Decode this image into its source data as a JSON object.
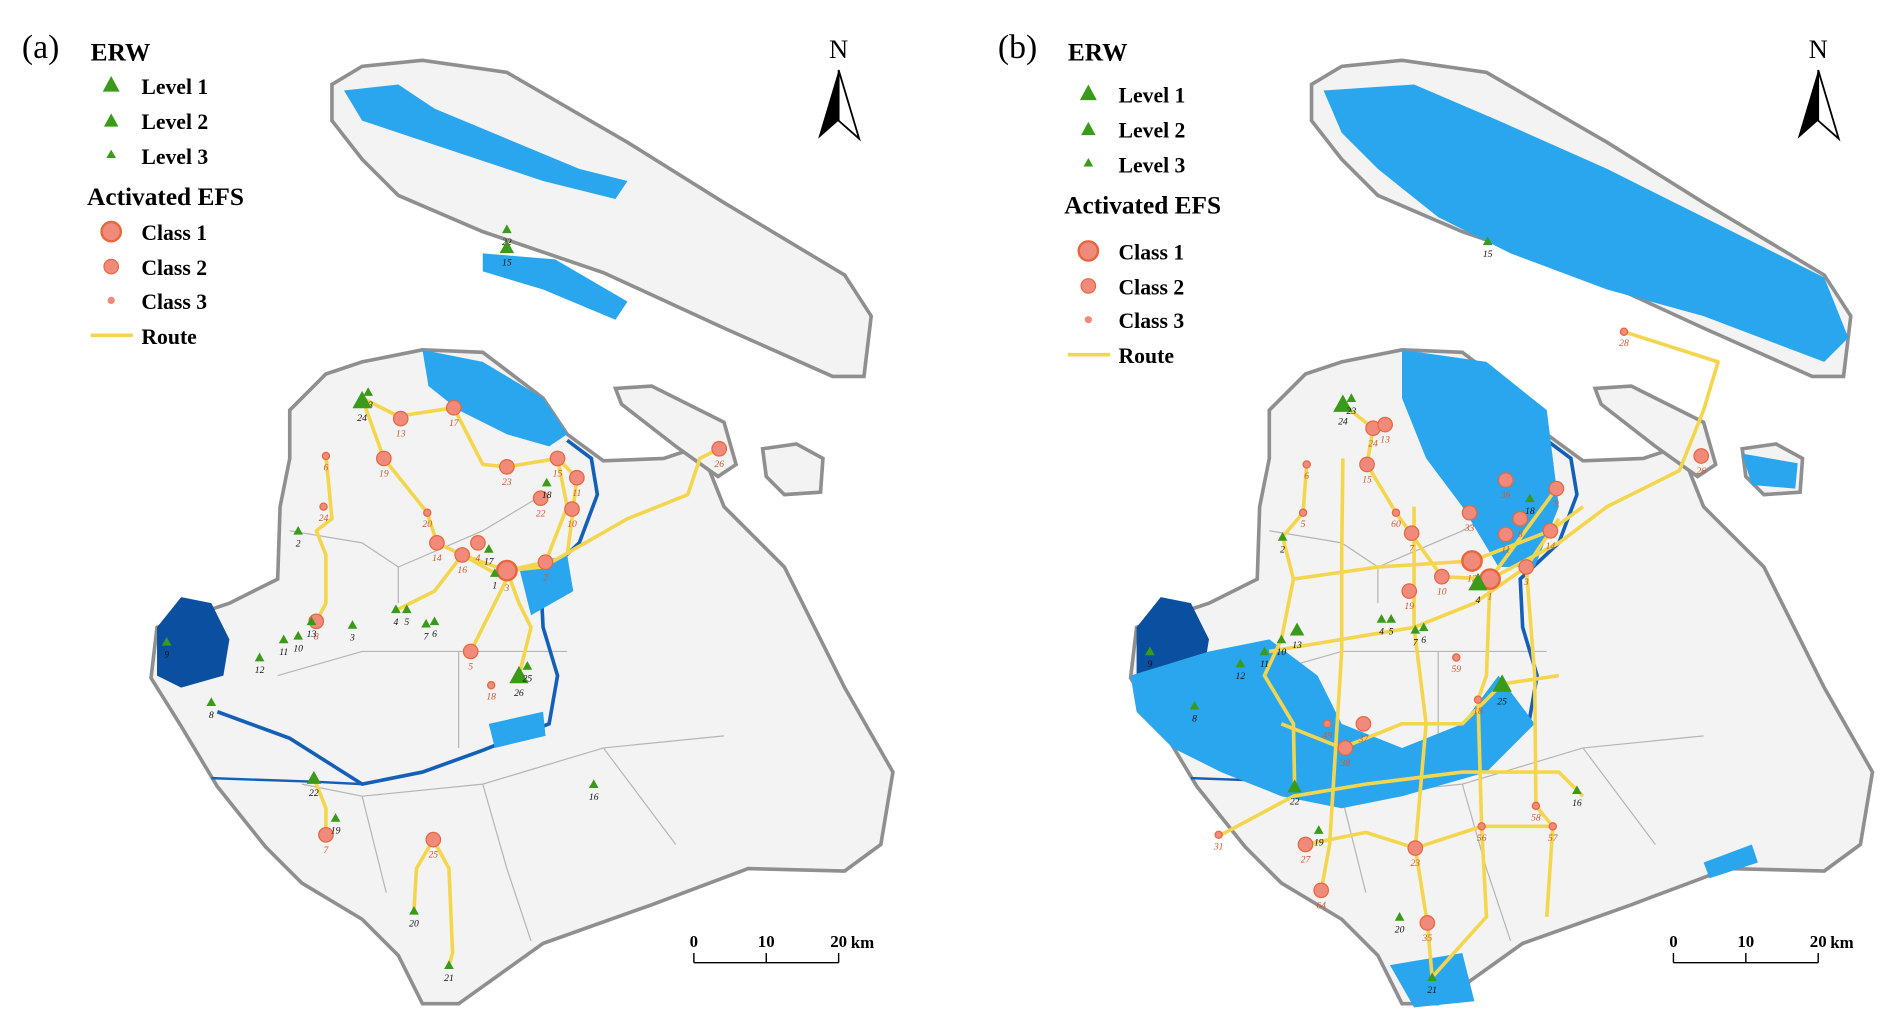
{
  "panels": [
    {
      "label": "(a)",
      "erw": [
        {
          "label": "22",
          "level": 3
        },
        {
          "label": "15",
          "level": 2
        },
        {
          "label": "23",
          "level": 3
        },
        {
          "label": "24",
          "level": 1
        },
        {
          "label": "2",
          "level": 3
        },
        {
          "label": "18",
          "level": 3
        },
        {
          "label": "17",
          "level": 3
        },
        {
          "label": "4",
          "level": 3
        },
        {
          "label": "5",
          "level": 3
        },
        {
          "label": "7",
          "level": 3
        },
        {
          "label": "6",
          "level": 3
        },
        {
          "label": "1",
          "level": 3
        },
        {
          "label": "3",
          "level": 3
        },
        {
          "label": "13",
          "level": 3
        },
        {
          "label": "10",
          "level": 3
        },
        {
          "label": "11",
          "level": 3
        },
        {
          "label": "9",
          "level": 3
        },
        {
          "label": "12",
          "level": 3
        },
        {
          "label": "8",
          "level": 3
        },
        {
          "label": "26",
          "level": 1
        },
        {
          "label": "25",
          "level": 3
        },
        {
          "label": "22",
          "level": 2
        },
        {
          "label": "19",
          "level": 3
        },
        {
          "label": "16",
          "level": 3
        },
        {
          "label": "20",
          "level": 3
        },
        {
          "label": "21",
          "level": 3
        }
      ],
      "efs": [
        {
          "label": "13",
          "class": 2
        },
        {
          "label": "17",
          "class": 2
        },
        {
          "label": "19",
          "class": 2
        },
        {
          "label": "6",
          "class": 3
        },
        {
          "label": "23",
          "class": 2
        },
        {
          "label": "15",
          "class": 2
        },
        {
          "label": "11",
          "class": 2
        },
        {
          "label": "22",
          "class": 2
        },
        {
          "label": "10",
          "class": 2
        },
        {
          "label": "20",
          "class": 3
        },
        {
          "label": "14",
          "class": 2
        },
        {
          "label": "16",
          "class": 2
        },
        {
          "label": "4",
          "class": 2
        },
        {
          "label": "3",
          "class": 1
        },
        {
          "label": "2",
          "class": 2
        },
        {
          "label": "5",
          "class": 2
        },
        {
          "label": "18",
          "class": 3
        },
        {
          "label": "8",
          "class": 2
        },
        {
          "label": "7",
          "class": 2
        },
        {
          "label": "25",
          "class": 2
        },
        {
          "label": "26",
          "class": 2
        },
        {
          "label": "24",
          "class": 3
        }
      ]
    },
    {
      "label": "(b)",
      "erw": [
        {
          "label": "15",
          "level": 3
        },
        {
          "label": "24",
          "level": 1
        },
        {
          "label": "23",
          "level": 3
        },
        {
          "label": "2",
          "level": 3
        },
        {
          "label": "18",
          "level": 3
        },
        {
          "label": "4",
          "level": 1
        },
        {
          "label": "4",
          "level": 3
        },
        {
          "label": "5",
          "level": 3
        },
        {
          "label": "7",
          "level": 3
        },
        {
          "label": "6",
          "level": 3
        },
        {
          "label": "13",
          "level": 2
        },
        {
          "label": "10",
          "level": 3
        },
        {
          "label": "11",
          "level": 3
        },
        {
          "label": "9",
          "level": 3
        },
        {
          "label": "12",
          "level": 3
        },
        {
          "label": "8",
          "level": 3
        },
        {
          "label": "25",
          "level": 1
        },
        {
          "label": "22",
          "level": 2
        },
        {
          "label": "19",
          "level": 3
        },
        {
          "label": "16",
          "level": 3
        },
        {
          "label": "20",
          "level": 3
        },
        {
          "label": "21",
          "level": 3
        }
      ],
      "efs": [
        {
          "label": "28",
          "class": 3
        },
        {
          "label": "26",
          "class": 2
        },
        {
          "label": "24",
          "class": 2
        },
        {
          "label": "13",
          "class": 2
        },
        {
          "label": "15",
          "class": 2
        },
        {
          "label": "36",
          "class": 2
        },
        {
          "label": "33",
          "class": 2
        },
        {
          "label": "60",
          "class": 3
        },
        {
          "label": "6",
          "class": 3
        },
        {
          "label": "5",
          "class": 3
        },
        {
          "label": "10",
          "class": 2
        },
        {
          "label": "12",
          "class": 1
        },
        {
          "label": "1",
          "class": 1
        },
        {
          "label": "14",
          "class": 2
        },
        {
          "label": "9",
          "class": 2
        },
        {
          "label": "8",
          "class": 2
        },
        {
          "label": "3",
          "class": 2
        },
        {
          "label": "11",
          "class": 2
        },
        {
          "label": "19",
          "class": 2
        },
        {
          "label": "7",
          "class": 2
        },
        {
          "label": "59",
          "class": 3
        },
        {
          "label": "18",
          "class": 3
        },
        {
          "label": "49",
          "class": 3
        },
        {
          "label": "37",
          "class": 2
        },
        {
          "label": "38",
          "class": 2
        },
        {
          "label": "58",
          "class": 3
        },
        {
          "label": "56",
          "class": 3
        },
        {
          "label": "57",
          "class": 3
        },
        {
          "label": "23",
          "class": 2
        },
        {
          "label": "31",
          "class": 3
        },
        {
          "label": "27",
          "class": 2
        },
        {
          "label": "64",
          "class": 2
        },
        {
          "label": "35",
          "class": 2
        }
      ]
    }
  ],
  "legend": {
    "erw_title": "ERW",
    "erw_levels": [
      "Level 1",
      "Level 2",
      "Level 3"
    ],
    "efs_title": "Activated EFS",
    "efs_classes": [
      "Class 1",
      "Class 2",
      "Class 3"
    ],
    "route": "Route"
  },
  "north": "N",
  "scale": {
    "ticks": [
      "0",
      "10",
      "20"
    ],
    "unit": "km"
  }
}
